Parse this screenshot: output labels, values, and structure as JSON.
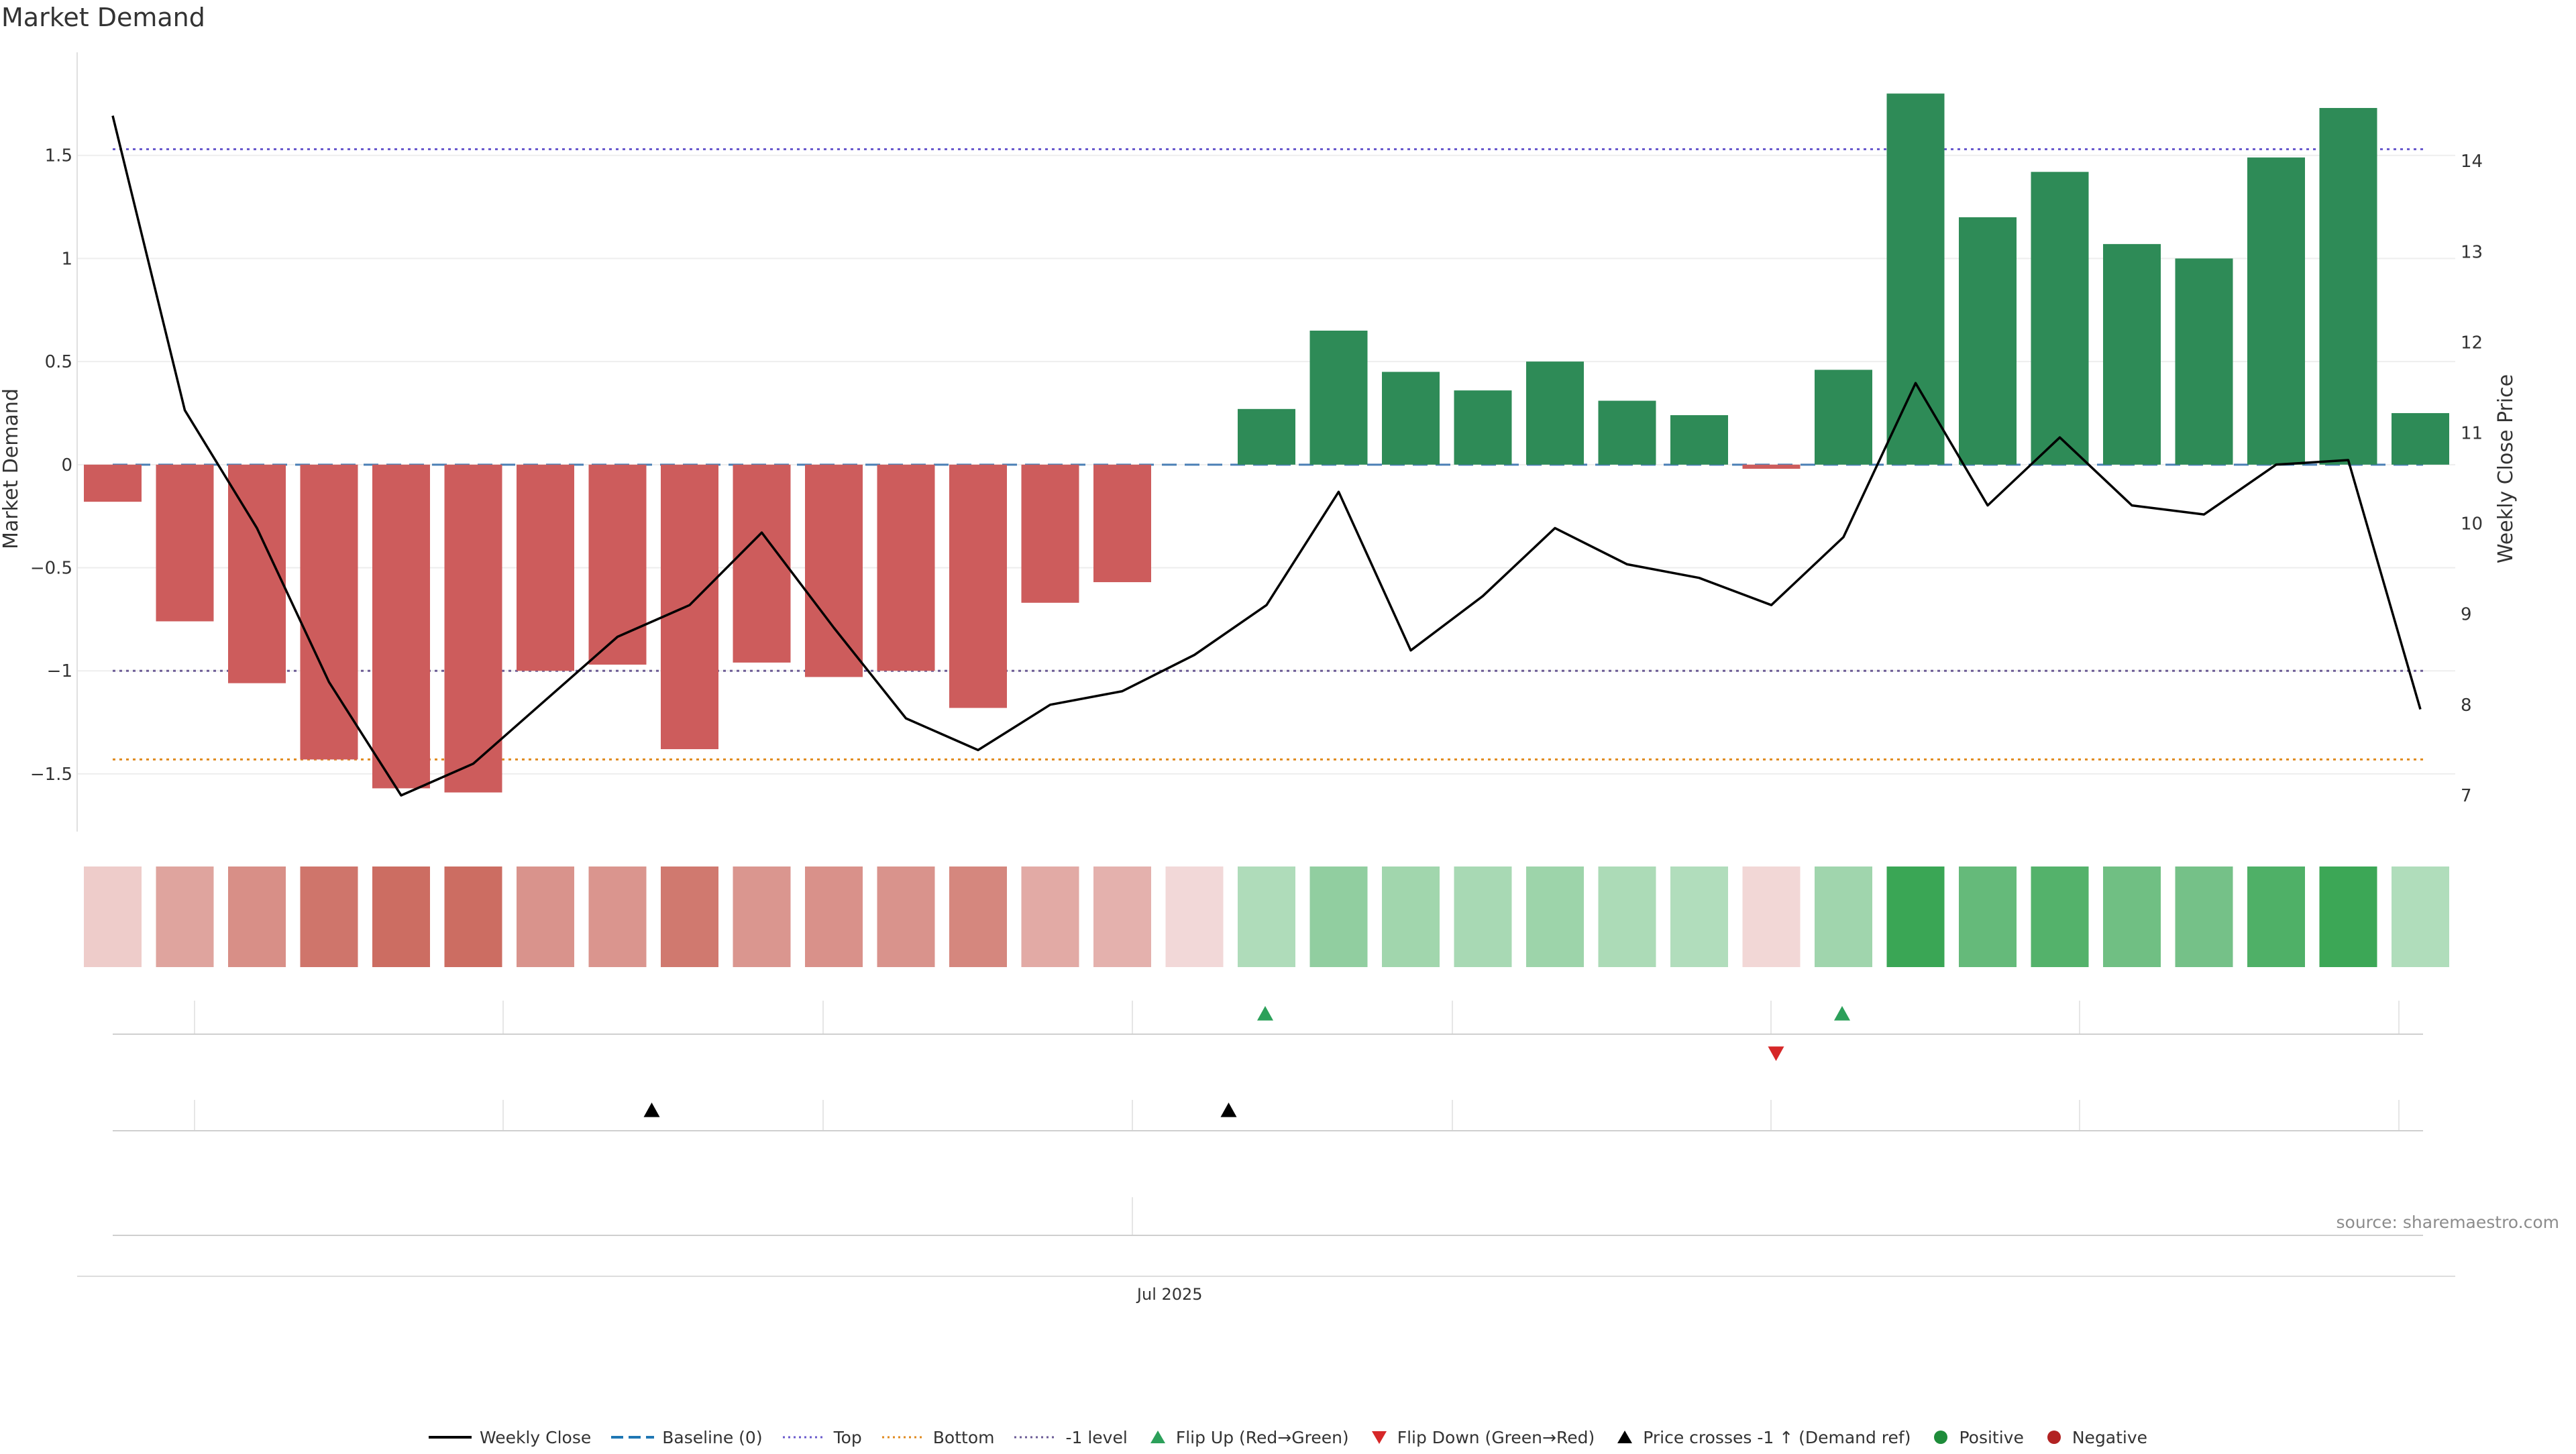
{
  "chart_data": {
    "type": "bar",
    "title": "Market Demand",
    "source": "source: sharemaestro.com",
    "ylabel": "Market Demand",
    "y2label": "Weekly Close Price",
    "ylim": [
      -1.78,
      2.0
    ],
    "y2lim": [
      6.6,
      15.2
    ],
    "yticks": [
      1.5,
      1,
      0.5,
      0,
      -0.5,
      -1,
      -1.5
    ],
    "ytick_labels": [
      "1.5",
      "1",
      "0.5",
      "0",
      "−0.5",
      "−1",
      "−1.5"
    ],
    "y2ticks": [
      14,
      13,
      12,
      11,
      10,
      9,
      8,
      7
    ],
    "y2tick_labels": [
      "14",
      "13",
      "12",
      "11",
      "10",
      "9",
      "8",
      "7"
    ],
    "xtick_labels": [
      "Jul 2025"
    ],
    "xtick_index": 14.5,
    "demand": [
      -0.18,
      -0.76,
      -1.06,
      -1.43,
      -1.57,
      -1.59,
      -1.0,
      -0.97,
      -1.38,
      -0.96,
      -1.03,
      -1.0,
      -1.18,
      -0.67,
      -0.57,
      0.0,
      0.27,
      0.65,
      0.45,
      0.36,
      0.5,
      0.31,
      0.24,
      -0.02,
      0.46,
      1.8,
      1.2,
      1.42,
      1.07,
      1.0,
      1.49,
      1.73,
      0.25
    ],
    "weekly_close": [
      14.5,
      11.25,
      9.95,
      8.25,
      7.0,
      7.35,
      8.05,
      8.75,
      9.1,
      9.9,
      8.85,
      7.85,
      7.5,
      8.0,
      8.15,
      8.55,
      9.1,
      10.35,
      8.6,
      9.2,
      9.95,
      9.55,
      9.4,
      9.1,
      9.85,
      11.55,
      10.2,
      10.95,
      10.2,
      10.1,
      10.65,
      10.7,
      7.95
    ],
    "reference_lines": {
      "baseline": 0,
      "top": 1.53,
      "bottom": -1.43,
      "minus_one_level": -1
    },
    "flip_up_indices": [
      16,
      24
    ],
    "flip_down_indices": [
      23
    ],
    "price_cross_indices": [
      7,
      15
    ],
    "legend": [
      {
        "label": "Weekly Close",
        "kind": "solid-line",
        "color": "#000000"
      },
      {
        "label": "Baseline (0)",
        "kind": "dash-line",
        "color": "#1f77b4"
      },
      {
        "label": "Top",
        "kind": "dot-line",
        "color": "#6a5acd"
      },
      {
        "label": "Bottom",
        "kind": "dot-line",
        "color": "#e08a1e"
      },
      {
        "label": "-1 level",
        "kind": "dot-line",
        "color": "#6b5b95"
      },
      {
        "label": "Flip Up (Red→Green)",
        "kind": "triangle-up",
        "color": "#2ca05a"
      },
      {
        "label": "Flip Down (Green→Red)",
        "kind": "triangle-down",
        "color": "#d62728"
      },
      {
        "label": "Price crosses -1 ↑ (Demand ref)",
        "kind": "triangle-up",
        "color": "#000000"
      },
      {
        "label": "Positive",
        "kind": "circle",
        "color": "#1e8c3a"
      },
      {
        "label": "Negative",
        "kind": "circle",
        "color": "#b22222"
      }
    ],
    "colors": {
      "positive_bar": "#2e8b57",
      "negative_bar": "#cd5c5c",
      "price_line": "#000000"
    }
  }
}
